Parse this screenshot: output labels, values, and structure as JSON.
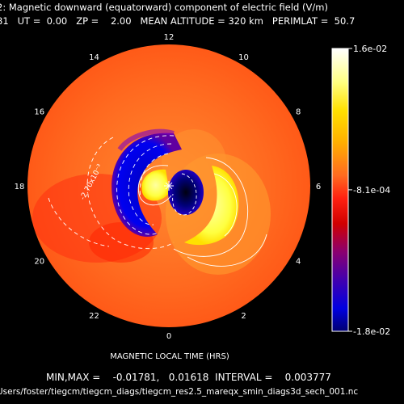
{
  "header": {
    "line1": "2: Magnetic downward (equatorward) component of electric field (V/m)",
    "line2": "81   UT =  0.00   ZP =    2.00   MEAN ALTITUDE = 320 km   PERIMLAT =  50.7"
  },
  "footer": {
    "minmax": "MIN,MAX =    -0.01781,   0.01618  INTERVAL =    0.003777",
    "filepath": "Users/foster/tiegcm/tiegcm_diags/tiegcm_res2.5_mareqx_smin_diags3d_sech_001.nc"
  },
  "chart_data": {
    "type": "heatmap",
    "projection": "polar",
    "title": "2: Magnetic downward (equatorward) component of electric field (V/m)",
    "xlabel": "MAGNETIC LOCAL TIME (HRS)",
    "hour_ticks": [
      "12",
      "10",
      "8",
      "6",
      "4",
      "2",
      "0",
      "22",
      "20",
      "18",
      "16",
      "14"
    ],
    "contour_label": "-2.70x10⁻³",
    "colorbar": {
      "labels": [
        "1.6e-02",
        "-8.1e-04",
        "-1.8e-02"
      ],
      "values": [
        0.01618,
        -0.00081,
        -0.01781
      ]
    },
    "min": -0.01781,
    "max": 0.01618,
    "interval": 0.003777,
    "colors": {
      "background": "#ff6a20",
      "positive": "#ffff80",
      "negative": "#0000d0",
      "contour": "#ffffff"
    }
  }
}
